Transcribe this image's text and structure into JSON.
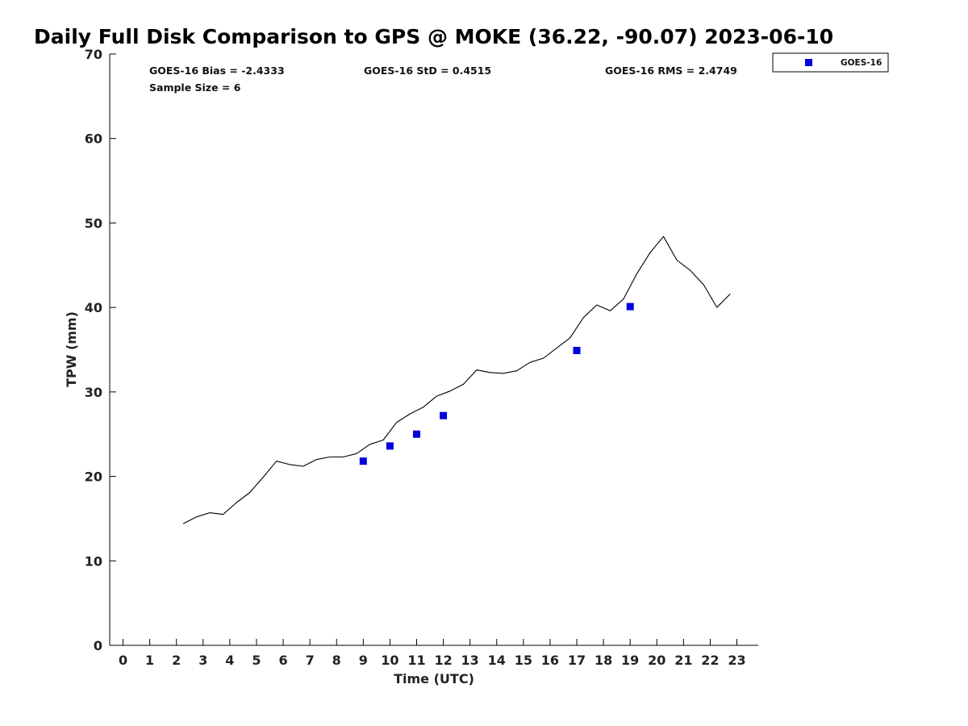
{
  "chart_data": {
    "type": "line",
    "title": "Daily Full Disk Comparison to GPS @ MOKE (36.22, -90.07) 2023-06-10",
    "xlabel": "Time (UTC)",
    "ylabel": "TPW (mm)",
    "xlim": [
      -0.5,
      23.8
    ],
    "ylim": [
      0,
      70
    ],
    "x_ticks": [
      0,
      1,
      2,
      3,
      4,
      5,
      6,
      7,
      8,
      9,
      10,
      11,
      12,
      13,
      14,
      15,
      16,
      17,
      18,
      19,
      20,
      21,
      22,
      23
    ],
    "y_ticks": [
      0,
      10,
      20,
      30,
      40,
      50,
      60,
      70
    ],
    "grid": false,
    "legend_position": "top-right",
    "stats": {
      "bias": "GOES-16 Bias = -2.4333",
      "std": "GOES-16 StD = 0.4515",
      "rms": "GOES-16 RMS = 2.4749",
      "sample": "Sample Size = 6"
    },
    "legend": [
      {
        "label": "GOES-16",
        "color": "#0000dd",
        "marker": "square"
      }
    ],
    "series": [
      {
        "kind": "line",
        "color": "#000000",
        "x": [
          2.25,
          2.75,
          3.25,
          3.75,
          4.25,
          4.75,
          5.25,
          5.75,
          6.25,
          6.75,
          7.25,
          7.75,
          8.25,
          8.75,
          9.25,
          9.75,
          10.25,
          10.75,
          11.25,
          11.75,
          12.25,
          12.75,
          13.25,
          13.75,
          14.25,
          14.75,
          15.25,
          15.75,
          16.25,
          16.75,
          17.25,
          17.75,
          18.25,
          18.75,
          19.25,
          19.75,
          20.25,
          20.75,
          21.25,
          21.75,
          22.25,
          22.75
        ],
        "y": [
          14.4,
          15.2,
          15.7,
          15.5,
          16.9,
          18.1,
          19.9,
          21.8,
          21.4,
          21.2,
          22.0,
          22.3,
          22.3,
          22.7,
          23.8,
          24.3,
          26.4,
          27.4,
          28.2,
          29.5,
          30.1,
          30.9,
          32.6,
          32.3,
          32.2,
          32.5,
          33.5,
          34.0,
          35.2,
          36.4,
          38.8,
          40.3,
          39.6,
          41.0,
          44.0,
          46.5,
          48.4,
          45.6,
          44.4,
          42.7,
          40.0,
          41.6
        ]
      },
      {
        "kind": "scatter",
        "name": "GOES-16",
        "color": "#0000dd",
        "x": [
          9,
          10,
          11,
          12,
          17,
          19
        ],
        "y": [
          21.8,
          23.6,
          25.0,
          27.2,
          34.9,
          40.1
        ]
      }
    ]
  }
}
